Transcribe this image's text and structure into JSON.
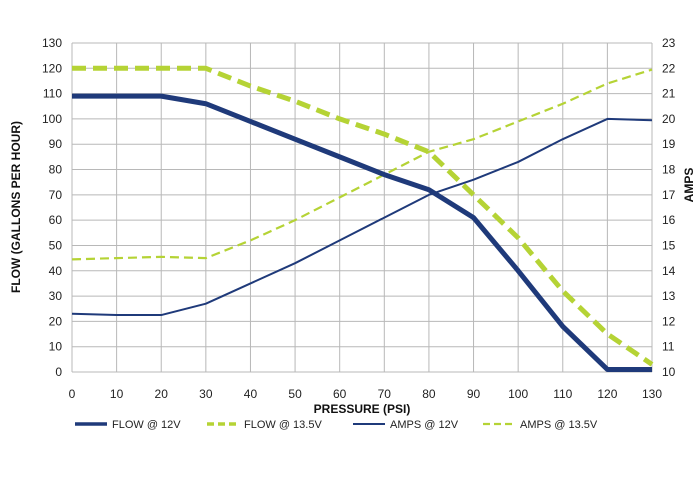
{
  "chart_data": {
    "type": "line",
    "xlabel": "PRESSURE (PSI)",
    "ylabel": "FLOW (GALLONS PER HOUR)",
    "y2label": "AMPS",
    "x": [
      0,
      10,
      20,
      30,
      40,
      50,
      60,
      70,
      80,
      90,
      100,
      110,
      120,
      130
    ],
    "xlim": [
      0,
      130
    ],
    "ylim": [
      0,
      130
    ],
    "y2lim": [
      10,
      23
    ],
    "x_ticks": [
      "0",
      "10",
      "20",
      "30",
      "40",
      "50",
      "60",
      "70",
      "80",
      "90",
      "100",
      "110",
      "120",
      "130"
    ],
    "y_ticks": [
      "0",
      "10",
      "20",
      "30",
      "40",
      "50",
      "60",
      "70",
      "80",
      "90",
      "100",
      "110",
      "120",
      "130"
    ],
    "y2_ticks": [
      "10",
      "11",
      "12",
      "13",
      "14",
      "15",
      "16",
      "17",
      "18",
      "19",
      "20",
      "21",
      "22",
      "23"
    ],
    "grid": true,
    "legend_position": "bottom",
    "series": [
      {
        "name": "FLOW @ 12V",
        "axis": "left",
        "color": "#1f3a7a",
        "style": "solid-thick",
        "values": [
          109,
          109,
          109,
          106,
          99,
          92,
          85,
          78,
          72,
          61,
          40,
          18,
          1,
          1
        ]
      },
      {
        "name": "FLOW @ 13.5V",
        "axis": "left",
        "color": "#b5d335",
        "style": "dashed-thick",
        "values": [
          120,
          120,
          120,
          120,
          113,
          107,
          100,
          94,
          87,
          70,
          53,
          32,
          15,
          3
        ]
      },
      {
        "name": "AMPS @ 12V",
        "axis": "right",
        "color": "#1f3a7a",
        "style": "solid-thin",
        "values": [
          12.3,
          12.25,
          12.25,
          12.7,
          13.5,
          14.3,
          15.2,
          16.1,
          17.0,
          17.6,
          18.3,
          19.2,
          20.0,
          19.95
        ]
      },
      {
        "name": "AMPS @ 13.5V",
        "axis": "right",
        "color": "#b5d335",
        "style": "dashed-thin",
        "values": [
          14.45,
          14.5,
          14.55,
          14.5,
          15.2,
          16.0,
          16.9,
          17.8,
          18.7,
          19.2,
          19.9,
          20.6,
          21.4,
          21.95
        ]
      }
    ]
  }
}
